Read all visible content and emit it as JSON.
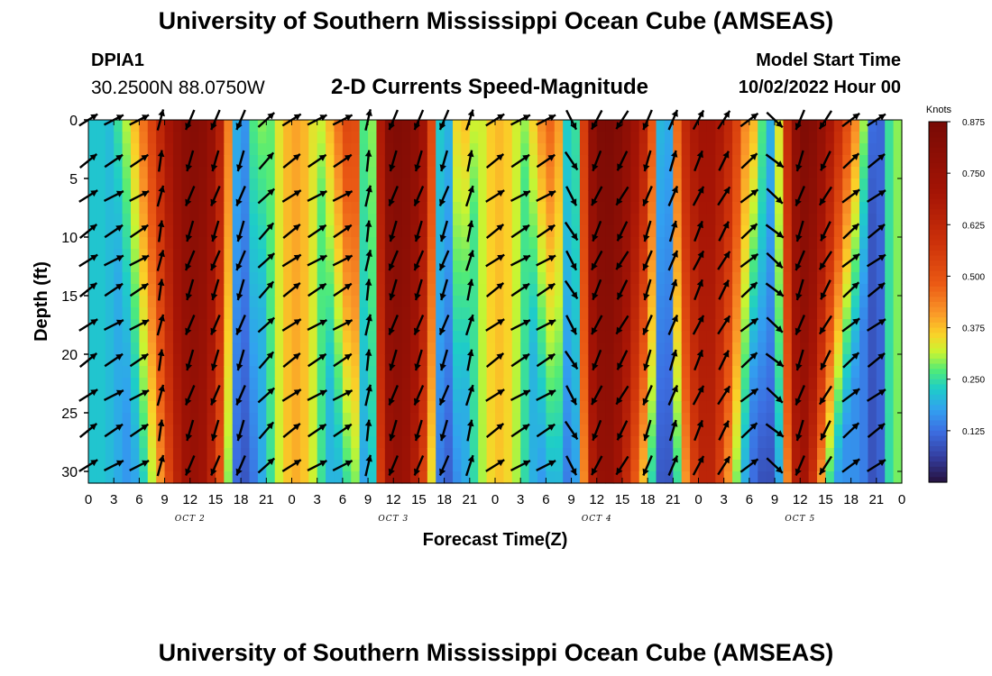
{
  "header": {
    "title": "University of Southern Mississippi Ocean Cube (AMSEAS)",
    "station_id": "DPIA1",
    "station_coords": "30.2500N  88.0750W",
    "plot_title": "2-D Currents Speed-Magnitude",
    "model_start_label": "Model Start Time",
    "model_start_value": "10/02/2022 Hour 00"
  },
  "footer": {
    "title": "University of Southern Mississippi Ocean Cube (AMSEAS)"
  },
  "chart_data": {
    "type": "heatmap",
    "title": "2-D Currents Speed-Magnitude",
    "xlabel": "Forecast Time(Z)",
    "ylabel": "Depth (ft)",
    "xlim": [
      0,
      96
    ],
    "ylim": [
      0,
      31
    ],
    "x_ticks": [
      0,
      3,
      6,
      9,
      12,
      15,
      18,
      21,
      24,
      27,
      30,
      33,
      36,
      39,
      42,
      45,
      48,
      51,
      54,
      57,
      60,
      63,
      66,
      69,
      72,
      75,
      78,
      81,
      84,
      87,
      90,
      93,
      96
    ],
    "x_tick_labels": [
      "0",
      "3",
      "6",
      "9",
      "12",
      "15",
      "18",
      "21",
      "0",
      "3",
      "6",
      "9",
      "12",
      "15",
      "18",
      "21",
      "0",
      "3",
      "6",
      "9",
      "12",
      "15",
      "18",
      "21",
      "0",
      "3",
      "6",
      "9",
      "12",
      "15",
      "18",
      "21",
      "0"
    ],
    "y_ticks": [
      0,
      5,
      10,
      15,
      20,
      25,
      30
    ],
    "day_labels": [
      {
        "hour": 12,
        "text": "OCT 2"
      },
      {
        "hour": 36,
        "text": "OCT 3"
      },
      {
        "hour": 60,
        "text": "OCT 4"
      },
      {
        "hour": 84,
        "text": "OCT 5"
      }
    ],
    "colorbar": {
      "label": "Knots",
      "min": 0,
      "max": 0.875,
      "ticks": [
        "0.875",
        "0.750",
        "0.625",
        "0.500",
        "0.375",
        "0.250",
        "0.125"
      ],
      "tick_values": [
        0.875,
        0.75,
        0.625,
        0.5,
        0.375,
        0.25,
        0.125
      ]
    },
    "speed_bands": [
      {
        "center_hour": 1,
        "width": 4,
        "peak": 0.22,
        "depth_decay": 0.0
      },
      {
        "center_hour": 12.5,
        "width": 7,
        "peak": 0.82,
        "depth_decay": 0.35
      },
      {
        "center_hour": 24.5,
        "width": 4,
        "peak": 0.4,
        "depth_decay": 0.1
      },
      {
        "center_hour": 36.5,
        "width": 8,
        "peak": 0.84,
        "depth_decay": 0.4
      },
      {
        "center_hour": 48.5,
        "width": 4,
        "peak": 0.38,
        "depth_decay": 0.1
      },
      {
        "center_hour": 61,
        "width": 8,
        "peak": 0.86,
        "depth_decay": 0.42
      },
      {
        "center_hour": 73,
        "width": 6,
        "peak": 0.72,
        "depth_decay": 0.45
      },
      {
        "center_hour": 84,
        "width": 7,
        "peak": 0.86,
        "depth_decay": 0.6
      },
      {
        "center_hour": 95,
        "width": 3,
        "peak": 0.3,
        "depth_decay": 0.1
      }
    ],
    "low_speed_bands": [
      {
        "center_hour": 18,
        "width": 1.6
      },
      {
        "center_hour": 33,
        "width": 1.2
      },
      {
        "center_hour": 42,
        "width": 1.4
      },
      {
        "center_hour": 57,
        "width": 1.6
      },
      {
        "center_hour": 68,
        "width": 1.2
      },
      {
        "center_hour": 80.5,
        "width": 2.0
      },
      {
        "center_hour": 93,
        "width": 1.2
      }
    ],
    "arrow_depths": [
      0,
      3.5,
      6.5,
      9.5,
      12,
      14.5,
      17.5,
      20.5,
      23.5,
      26.5,
      29.5
    ],
    "arrow_columns": [
      {
        "hour": 0,
        "angle": 35
      },
      {
        "hour": 3,
        "angle": 30
      },
      {
        "hour": 6,
        "angle": 30
      },
      {
        "hour": 8.5,
        "angle": 78
      },
      {
        "hour": 12,
        "angle": 250
      },
      {
        "hour": 15,
        "angle": 250
      },
      {
        "hour": 18,
        "angle": 250
      },
      {
        "hour": 21,
        "angle": 45
      },
      {
        "hour": 24,
        "angle": 35
      },
      {
        "hour": 27,
        "angle": 30
      },
      {
        "hour": 30,
        "angle": 30
      },
      {
        "hour": 33,
        "angle": 80
      },
      {
        "hour": 36,
        "angle": 250
      },
      {
        "hour": 39,
        "angle": 250
      },
      {
        "hour": 42,
        "angle": 250
      },
      {
        "hour": 45,
        "angle": 75
      },
      {
        "hour": 48,
        "angle": 35
      },
      {
        "hour": 51,
        "angle": 30
      },
      {
        "hour": 54,
        "angle": 30
      },
      {
        "hour": 57,
        "angle": 300
      },
      {
        "hour": 60,
        "angle": 245
      },
      {
        "hour": 63,
        "angle": 240
      },
      {
        "hour": 66,
        "angle": 250
      },
      {
        "hour": 69,
        "angle": 70
      },
      {
        "hour": 72,
        "angle": 65
      },
      {
        "hour": 75,
        "angle": 60
      },
      {
        "hour": 78,
        "angle": 40
      },
      {
        "hour": 81,
        "angle": 320
      },
      {
        "hour": 84,
        "angle": 250
      },
      {
        "hour": 87,
        "angle": 240
      },
      {
        "hour": 90,
        "angle": 40
      },
      {
        "hour": 93,
        "angle": 35
      }
    ]
  }
}
